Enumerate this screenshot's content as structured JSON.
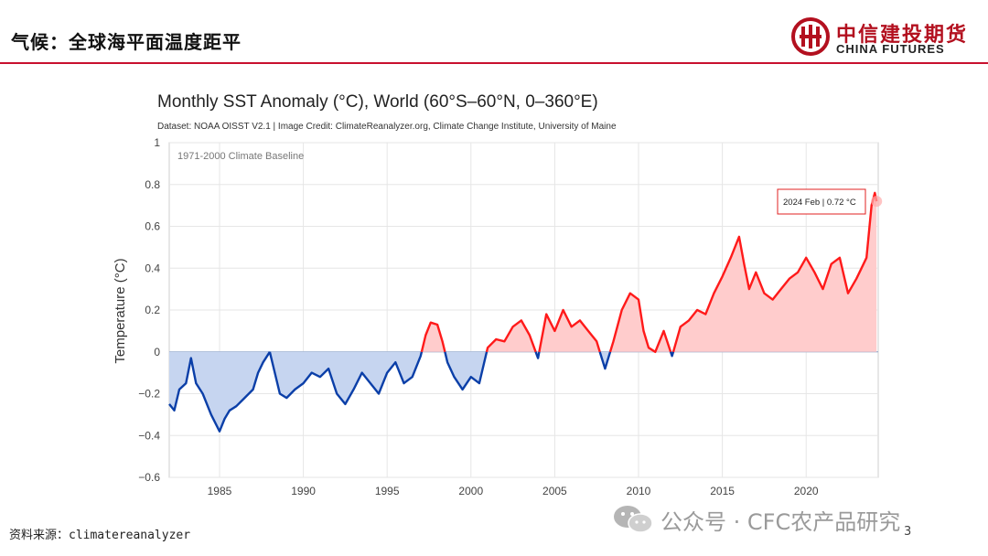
{
  "header": {
    "title": "气候：全球海平面温度距平",
    "logo_cn": "中信建投期货",
    "logo_en": "CHINA FUTURES"
  },
  "chart_data": {
    "type": "area",
    "title": "Monthly SST Anomaly (°C), World (60°S–60°N, 0–360°E)",
    "subtitle": "Dataset: NOAA OISST V2.1 | Image Credit: ClimateReanalyzer.org, Climate Change Institute, University of Maine",
    "baseline_label": "1971-2000 Climate Baseline",
    "xlabel": "",
    "ylabel": "Temperature (°C)",
    "xlim": [
      1982,
      2024.3
    ],
    "ylim": [
      -0.6,
      1.0
    ],
    "yticks": [
      -0.6,
      -0.4,
      -0.2,
      0,
      0.2,
      0.4,
      0.6,
      0.8,
      1
    ],
    "ytick_labels": [
      "−0.6",
      "−0.4",
      "−0.2",
      "0",
      "0.2",
      "0.4",
      "0.6",
      "0.8",
      "1"
    ],
    "xticks": [
      1985,
      1990,
      1995,
      2000,
      2005,
      2010,
      2015,
      2020
    ],
    "positive_color": "#ff1a1a",
    "negative_color": "#0b3fa8",
    "positive_fill": "#ffcccc",
    "negative_fill": "#c6d5f0",
    "grid": true,
    "tooltip": "2024 Feb | 0.72 °C",
    "series": [
      {
        "name": "Monthly SST Anomaly",
        "x": [
          1982.0,
          1982.3,
          1982.6,
          1983.0,
          1983.3,
          1983.6,
          1984.0,
          1984.5,
          1985.0,
          1985.3,
          1985.6,
          1986.0,
          1986.5,
          1987.0,
          1987.3,
          1987.6,
          1988.0,
          1988.3,
          1988.6,
          1989.0,
          1989.5,
          1990.0,
          1990.5,
          1991.0,
          1991.5,
          1992.0,
          1992.5,
          1993.0,
          1993.5,
          1994.0,
          1994.5,
          1995.0,
          1995.5,
          1996.0,
          1996.5,
          1997.0,
          1997.3,
          1997.6,
          1998.0,
          1998.3,
          1998.6,
          1999.0,
          1999.5,
          2000.0,
          2000.5,
          2001.0,
          2001.5,
          2002.0,
          2002.5,
          2003.0,
          2003.5,
          2004.0,
          2004.5,
          2005.0,
          2005.5,
          2006.0,
          2006.5,
          2007.0,
          2007.5,
          2008.0,
          2008.5,
          2009.0,
          2009.5,
          2010.0,
          2010.3,
          2010.6,
          2011.0,
          2011.5,
          2012.0,
          2012.5,
          2013.0,
          2013.5,
          2014.0,
          2014.5,
          2015.0,
          2015.5,
          2016.0,
          2016.3,
          2016.6,
          2017.0,
          2017.5,
          2018.0,
          2018.5,
          2019.0,
          2019.5,
          2020.0,
          2020.5,
          2021.0,
          2021.5,
          2022.0,
          2022.5,
          2023.0,
          2023.3,
          2023.6,
          2023.9,
          2024.1,
          2024.2
        ],
        "y": [
          -0.25,
          -0.28,
          -0.18,
          -0.15,
          -0.03,
          -0.15,
          -0.2,
          -0.3,
          -0.38,
          -0.32,
          -0.28,
          -0.26,
          -0.22,
          -0.18,
          -0.1,
          -0.05,
          0.0,
          -0.1,
          -0.2,
          -0.22,
          -0.18,
          -0.15,
          -0.1,
          -0.12,
          -0.08,
          -0.2,
          -0.25,
          -0.18,
          -0.1,
          -0.15,
          -0.2,
          -0.1,
          -0.05,
          -0.15,
          -0.12,
          -0.02,
          0.08,
          0.14,
          0.13,
          0.05,
          -0.05,
          -0.12,
          -0.18,
          -0.12,
          -0.15,
          0.02,
          0.06,
          0.05,
          0.12,
          0.15,
          0.08,
          -0.03,
          0.18,
          0.1,
          0.2,
          0.12,
          0.15,
          0.1,
          0.05,
          -0.08,
          0.05,
          0.2,
          0.28,
          0.25,
          0.1,
          0.02,
          0.0,
          0.1,
          -0.02,
          0.12,
          0.15,
          0.2,
          0.18,
          0.28,
          0.36,
          0.45,
          0.55,
          0.42,
          0.3,
          0.38,
          0.28,
          0.25,
          0.3,
          0.35,
          0.38,
          0.45,
          0.38,
          0.3,
          0.42,
          0.45,
          0.28,
          0.35,
          0.4,
          0.45,
          0.7,
          0.76,
          0.72
        ]
      }
    ]
  },
  "footer": {
    "source": "资料来源：climatereanalyzer",
    "watermark": "公众号 · CFC农产品研究",
    "page_number": "3"
  }
}
